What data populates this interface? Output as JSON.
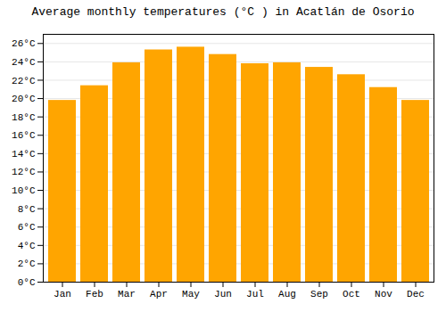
{
  "chart_data": {
    "type": "bar",
    "title": "Average monthly temperatures (°C ) in Acatlán de Osorio",
    "categories": [
      "Jan",
      "Feb",
      "Mar",
      "Apr",
      "May",
      "Jun",
      "Jul",
      "Aug",
      "Sep",
      "Oct",
      "Nov",
      "Dec"
    ],
    "values": [
      19.8,
      21.4,
      23.9,
      25.3,
      25.6,
      24.8,
      23.8,
      23.9,
      23.4,
      22.6,
      21.2,
      19.8
    ],
    "color": "#FFA500",
    "ylim": [
      0,
      27
    ],
    "yticks": [
      {
        "value": 0,
        "label": "0°C"
      },
      {
        "value": 2,
        "label": "2°C"
      },
      {
        "value": 4,
        "label": "4°C"
      },
      {
        "value": 6,
        "label": "6°C"
      },
      {
        "value": 8,
        "label": "8°C"
      },
      {
        "value": 10,
        "label": "10°C"
      },
      {
        "value": 12,
        "label": "12°C"
      },
      {
        "value": 14,
        "label": "14°C"
      },
      {
        "value": 16,
        "label": "16°C"
      },
      {
        "value": 18,
        "label": "18°C"
      },
      {
        "value": 20,
        "label": "20°C"
      },
      {
        "value": 22,
        "label": "22°C"
      },
      {
        "value": 24,
        "label": "24°C"
      },
      {
        "value": 26,
        "label": "26°C"
      }
    ],
    "grid": true
  }
}
